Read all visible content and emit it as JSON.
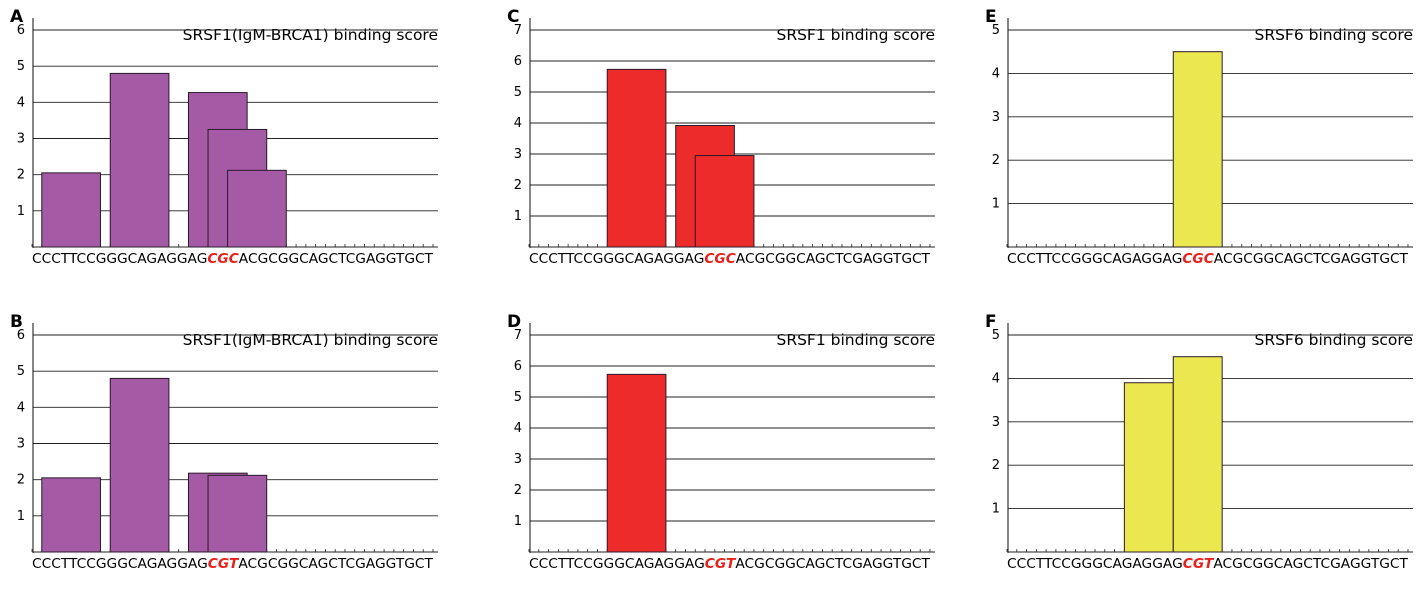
{
  "colors": {
    "purple": "#a55aa5",
    "red": "#ee2b2b",
    "yellow": "#ebe84f",
    "highlight": "#e8211d"
  },
  "chart_data": [
    {
      "id": "A",
      "panel_label": "A",
      "type": "bar",
      "title": "SRSF1(IgM-BRCA1) binding score",
      "yticks": [
        1,
        2,
        3,
        4,
        5,
        6
      ],
      "ylim": [
        0,
        6
      ],
      "sequence": {
        "before": "CCCTTCCGGGCAGAGGAG",
        "variant": "CGC",
        "after": "ACGCGGCAGCTCGAGGTGCT"
      },
      "color": "#a55aa5",
      "bars": [
        {
          "start": 1,
          "end": 7,
          "value": 2.05
        },
        {
          "start": 8,
          "end": 14,
          "value": 4.8
        },
        {
          "start": 16,
          "end": 22,
          "value": 4.27
        },
        {
          "start": 18,
          "end": 24,
          "value": 3.25
        },
        {
          "start": 20,
          "end": 26,
          "value": 2.12
        }
      ]
    },
    {
      "id": "B",
      "panel_label": "B",
      "type": "bar",
      "title": "SRSF1(IgM-BRCA1) binding score",
      "yticks": [
        1,
        2,
        3,
        4,
        5,
        6
      ],
      "ylim": [
        0,
        6
      ],
      "sequence": {
        "before": "CCCTTCCGGGCAGAGGAG",
        "variant": "CGT",
        "after": "ACGCGGCAGCTCGAGGTGCT"
      },
      "color": "#a55aa5",
      "bars": [
        {
          "start": 1,
          "end": 7,
          "value": 2.05
        },
        {
          "start": 8,
          "end": 14,
          "value": 4.8
        },
        {
          "start": 16,
          "end": 22,
          "value": 2.18
        },
        {
          "start": 18,
          "end": 24,
          "value": 2.12
        }
      ]
    },
    {
      "id": "C",
      "panel_label": "C",
      "type": "bar",
      "title": "SRSF1 binding score",
      "yticks": [
        1,
        2,
        3,
        4,
        5,
        6,
        7
      ],
      "ylim": [
        0,
        7
      ],
      "sequence": {
        "before": "CCCTTCCGGGCAGAGGAG",
        "variant": "CGC",
        "after": "ACGCGGCAGCTCGAGGTGCT"
      },
      "color": "#ee2b2b",
      "bars": [
        {
          "start": 8,
          "end": 14,
          "value": 5.73
        },
        {
          "start": 15,
          "end": 21,
          "value": 3.92
        },
        {
          "start": 17,
          "end": 23,
          "value": 2.95
        }
      ]
    },
    {
      "id": "D",
      "panel_label": "D",
      "type": "bar",
      "title": "SRSF1 binding score",
      "yticks": [
        1,
        2,
        3,
        4,
        5,
        6,
        7
      ],
      "ylim": [
        0,
        7
      ],
      "sequence": {
        "before": "CCCTTCCGGGCAGAGGAG",
        "variant": "CGT",
        "after": "ACGCGGCAGCTCGAGGTGCT"
      },
      "color": "#ee2b2b",
      "bars": [
        {
          "start": 8,
          "end": 14,
          "value": 5.73
        }
      ]
    },
    {
      "id": "E",
      "panel_label": "E",
      "type": "bar",
      "title": "SRSF6 binding score",
      "yticks": [
        1,
        2,
        3,
        4,
        5
      ],
      "ylim": [
        0,
        5
      ],
      "sequence": {
        "before": "CCCTTCCGGGCAGAGGAG",
        "variant": "CGC",
        "after": "ACGCGGCAGCTCGAGGTGCT"
      },
      "color": "#ebe84f",
      "bars": [
        {
          "start": 17,
          "end": 22,
          "value": 4.5
        }
      ]
    },
    {
      "id": "F",
      "panel_label": "F",
      "type": "bar",
      "title": "SRSF6 binding score",
      "yticks": [
        1,
        2,
        3,
        4,
        5
      ],
      "ylim": [
        0,
        5
      ],
      "sequence": {
        "before": "CCCTTCCGGGCAGAGGAG",
        "variant": "CGT",
        "after": "ACGCGGCAGCTCGAGGTGCT"
      },
      "color": "#ebe84f",
      "bars": [
        {
          "start": 12,
          "end": 17,
          "value": 3.9
        },
        {
          "start": 17,
          "end": 22,
          "value": 4.5
        }
      ]
    }
  ]
}
